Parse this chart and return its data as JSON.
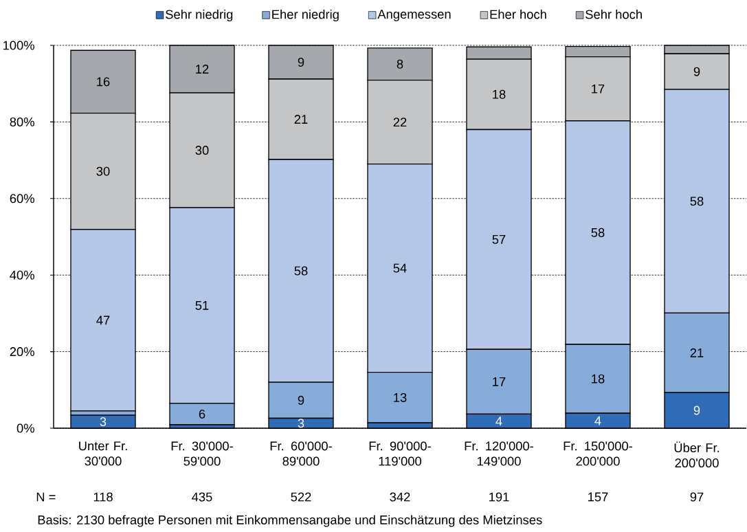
{
  "chart_data": {
    "type": "bar",
    "stacked": true,
    "categories": [
      "Unter Fr. 30'000",
      "Fr. 30'000-59'000",
      "Fr. 60'000-89'000",
      "Fr. 90'000-119'000",
      "Fr. 120'000-149'000",
      "Fr. 150'000-200'000",
      "Über Fr. 200'000"
    ],
    "series": [
      {
        "name": "Sehr niedrig",
        "color": "#2f6cb5",
        "values": [
          3.4,
          0.9,
          2.6,
          1.4,
          3.7,
          3.9,
          9.3
        ],
        "value_labels": [
          "3",
          null,
          "3",
          null,
          "4",
          "4",
          "9"
        ]
      },
      {
        "name": "Eher niedrig",
        "color": "#88acda",
        "values": [
          1.1,
          5.6,
          9.4,
          13.2,
          16.9,
          18,
          20.8
        ],
        "value_labels": [
          null,
          "6",
          "9",
          "13",
          "17",
          "18",
          "21"
        ]
      },
      {
        "name": "Angemessen",
        "color": "#b4c7e7",
        "values": [
          47.4,
          51.1,
          58.2,
          54.4,
          57.4,
          58.4,
          58.4
        ],
        "value_labels": [
          "47",
          "51",
          "58",
          "54",
          "57",
          "58",
          "58"
        ]
      },
      {
        "name": "Eher hoch",
        "color": "#c4c5c7",
        "values": [
          30.4,
          30,
          21,
          21.9,
          18.4,
          16.7,
          9.3
        ],
        "value_labels": [
          "30",
          "30",
          "21",
          "22",
          "18",
          "17",
          "9"
        ]
      },
      {
        "name": "Sehr hoch",
        "color": "#a5a8ad",
        "values": [
          16.4,
          12.4,
          8.8,
          8.4,
          3.2,
          2.7,
          2.2
        ],
        "value_labels": [
          "16",
          "12",
          "9",
          "8",
          null,
          null,
          null
        ]
      }
    ],
    "ylim": [
      0,
      100
    ],
    "yticks": [
      {
        "value": 0,
        "label": "0%"
      },
      {
        "value": 20,
        "label": "20%"
      },
      {
        "value": 40,
        "label": "40%"
      },
      {
        "value": 60,
        "label": "60%"
      },
      {
        "value": 80,
        "label": "80%"
      },
      {
        "value": 100,
        "label": "100%"
      }
    ],
    "grid": "y",
    "legend": "top",
    "annotations": [
      "N =",
      "118",
      "435",
      "522",
      "342",
      "191",
      "157",
      "97",
      "Basis: 2130 befragte Personen mit Einkommensangabe und Einschätzung des Mietzinses"
    ]
  }
}
